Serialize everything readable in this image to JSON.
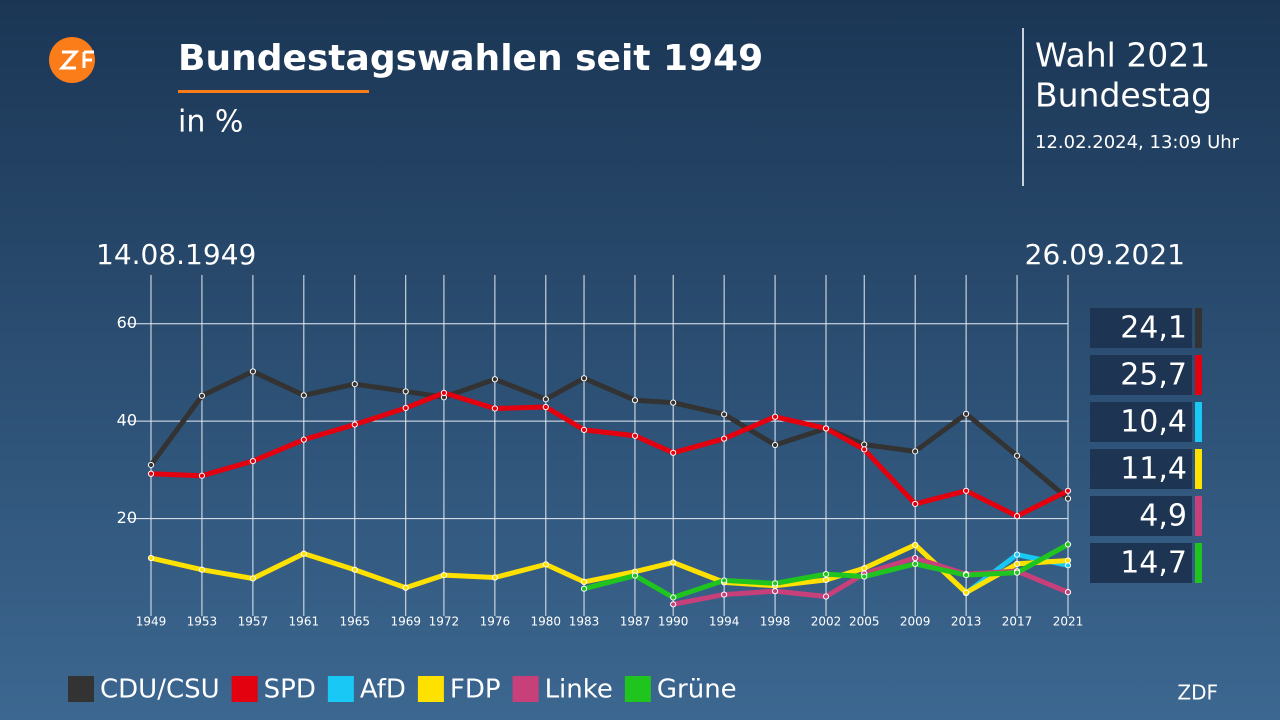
{
  "header": {
    "side_title_1": "Wahl 2021",
    "side_title_2": "Bundestag",
    "timestamp": "12.02.2024, 13:09 Uhr"
  },
  "footer": "ZDF",
  "chart_data": {
    "type": "line",
    "title": "Bundestagswahlen seit 1949",
    "subtitle": "in %",
    "start_label": "14.08.1949",
    "end_label": "26.09.2021",
    "x": [
      1949,
      1953,
      1957,
      1961,
      1965,
      1969,
      1972,
      1976,
      1980,
      1983,
      1987,
      1990,
      1994,
      1998,
      2002,
      2005,
      2009,
      2013,
      2017,
      2021
    ],
    "xticks": [
      1949,
      1953,
      1957,
      1961,
      1965,
      1969,
      1972,
      1976,
      1980,
      1983,
      1987,
      1990,
      1994,
      1998,
      2002,
      2005,
      2009,
      2013,
      2017,
      2021
    ],
    "xlim": [
      1949,
      2021
    ],
    "ylim": [
      0,
      70
    ],
    "yticks": [
      20,
      40,
      60
    ],
    "grid": true,
    "series": [
      {
        "name": "CDU/CSU",
        "color": "#333333",
        "values": [
          31.0,
          45.2,
          50.2,
          45.3,
          47.6,
          46.1,
          44.9,
          48.6,
          44.5,
          48.8,
          44.3,
          43.8,
          41.4,
          35.1,
          38.5,
          35.2,
          33.8,
          41.5,
          32.9,
          24.1
        ],
        "value_labels": [
          null,
          null,
          null,
          null,
          null,
          null,
          null,
          null,
          null,
          null,
          null,
          null,
          null,
          null,
          null,
          null,
          null,
          null,
          null,
          "24,1"
        ]
      },
      {
        "name": "SPD",
        "color": "#e3000f",
        "values": [
          29.2,
          28.8,
          31.8,
          36.2,
          39.3,
          42.7,
          45.8,
          42.6,
          42.9,
          38.2,
          37.0,
          33.5,
          36.4,
          40.9,
          38.5,
          34.2,
          23.0,
          25.7,
          20.5,
          25.7
        ],
        "value_labels": [
          null,
          null,
          null,
          null,
          null,
          null,
          null,
          null,
          null,
          null,
          null,
          null,
          null,
          null,
          null,
          null,
          null,
          null,
          null,
          "25,7"
        ]
      },
      {
        "name": "AfD",
        "color": "#19c8f5",
        "values": [
          null,
          null,
          null,
          null,
          null,
          null,
          null,
          null,
          null,
          null,
          null,
          null,
          null,
          null,
          null,
          null,
          null,
          4.7,
          12.6,
          10.4
        ],
        "value_labels": [
          null,
          null,
          null,
          null,
          null,
          null,
          null,
          null,
          null,
          null,
          null,
          null,
          null,
          null,
          null,
          null,
          null,
          null,
          null,
          "10,4"
        ]
      },
      {
        "name": "FDP",
        "color": "#ffe100",
        "values": [
          11.9,
          9.5,
          7.7,
          12.8,
          9.5,
          5.8,
          8.4,
          7.9,
          10.6,
          7.0,
          9.1,
          11.0,
          6.9,
          6.2,
          7.4,
          9.8,
          14.6,
          4.8,
          10.7,
          11.4
        ],
        "value_labels": [
          null,
          null,
          null,
          null,
          null,
          null,
          null,
          null,
          null,
          null,
          null,
          null,
          null,
          null,
          null,
          null,
          null,
          null,
          null,
          "11,4"
        ]
      },
      {
        "name": "Linke",
        "color": "#c8407a",
        "values": [
          null,
          null,
          null,
          null,
          null,
          null,
          null,
          null,
          null,
          null,
          null,
          2.4,
          4.4,
          5.1,
          4.0,
          8.7,
          11.9,
          8.6,
          9.2,
          4.9
        ],
        "value_labels": [
          null,
          null,
          null,
          null,
          null,
          null,
          null,
          null,
          null,
          null,
          null,
          null,
          null,
          null,
          null,
          null,
          null,
          null,
          null,
          "4,9"
        ]
      },
      {
        "name": "Grüne",
        "color": "#1fc41f",
        "values": [
          null,
          null,
          null,
          null,
          null,
          null,
          null,
          null,
          null,
          5.6,
          8.3,
          3.8,
          7.3,
          6.7,
          8.6,
          8.1,
          10.7,
          8.4,
          8.9,
          14.7
        ],
        "value_labels": [
          null,
          null,
          null,
          null,
          null,
          null,
          null,
          null,
          null,
          null,
          null,
          null,
          null,
          null,
          null,
          null,
          null,
          null,
          null,
          "14,7"
        ]
      }
    ]
  }
}
